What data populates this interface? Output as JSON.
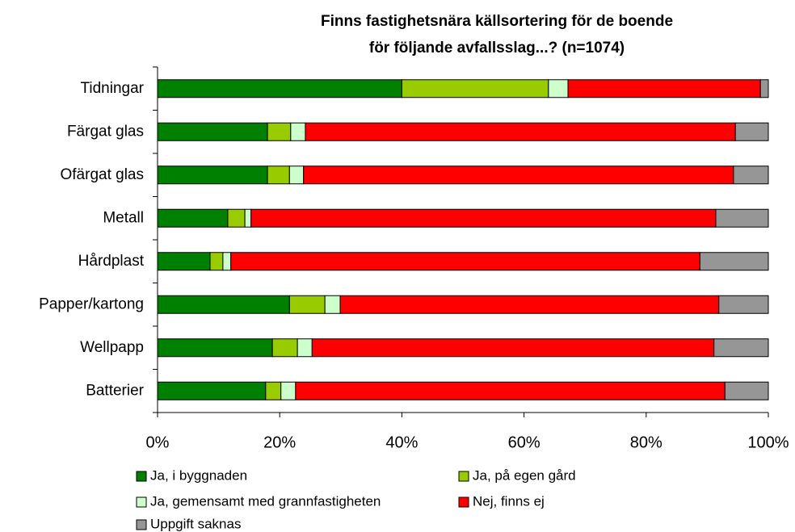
{
  "chart_data": {
    "type": "stacked-barh",
    "title": [
      "Finns fastighetsnära källsortering för de boende",
      "för följande avfallsslag...? (n=1074)"
    ],
    "categories": [
      "Tidningar",
      "Färgat glas",
      "Ofärgat glas",
      "Metall",
      "Hårdplast",
      "Papper/kartong",
      "Wellpapp",
      "Batterier"
    ],
    "series": [
      {
        "name": "Ja, i byggnaden",
        "color": "#008000",
        "values": [
          40,
          18,
          18,
          11.5,
          8.6,
          21.6,
          18.8,
          17.7
        ]
      },
      {
        "name": "Ja, på egen gård",
        "color": "#99cc00",
        "values": [
          24,
          3.8,
          3.6,
          2.8,
          2.1,
          5.8,
          4.1,
          2.5
        ]
      },
      {
        "name": "Ja, gemensamt med grannfastigheten",
        "color": "#ccffcc",
        "values": [
          3.2,
          2.4,
          2.3,
          1.0,
          1.3,
          2.5,
          2.4,
          2.4
        ]
      },
      {
        "name": "Nej, finns ej",
        "color": "#ff0000",
        "values": [
          31.5,
          70.4,
          70.4,
          76.1,
          76.8,
          62.0,
          65.8,
          70.3
        ]
      },
      {
        "name": "Uppgift saknas",
        "color": "#969696",
        "values": [
          1.3,
          5.4,
          5.7,
          8.6,
          11.2,
          8.1,
          8.9,
          7.1
        ]
      }
    ],
    "xlim": [
      0,
      100
    ],
    "xticks": [
      {
        "value": 0,
        "label": "0%"
      },
      {
        "value": 20,
        "label": "20%"
      },
      {
        "value": 40,
        "label": "40%"
      },
      {
        "value": 60,
        "label": "60%"
      },
      {
        "value": 80,
        "label": "80%"
      },
      {
        "value": 100,
        "label": "100%"
      }
    ],
    "legend": "bottom"
  }
}
